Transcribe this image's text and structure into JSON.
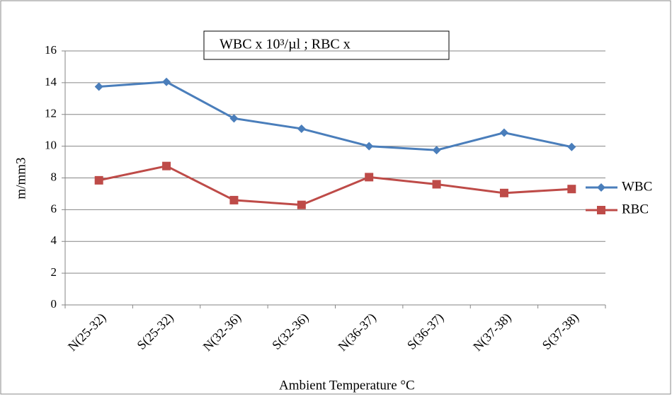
{
  "chart_data": {
    "type": "line",
    "title": "WBC x 10³/µl ; RBC x",
    "x_label": "Ambient Temperature °C",
    "y_label": "m/mm3",
    "categories": [
      "N(25-32)",
      "S(25-32)",
      "N(32-36)",
      "S(32-36)",
      "N(36-37)",
      "S(36-37)",
      "N(37-38)",
      "S(37-38)"
    ],
    "series": [
      {
        "name": "WBC",
        "color": "#4a7ebb",
        "marker": "diamond",
        "values": [
          13.75,
          14.05,
          11.75,
          11.1,
          10.0,
          9.75,
          10.85,
          9.95
        ]
      },
      {
        "name": "RBC",
        "color": "#be4b48",
        "marker": "square",
        "values": [
          7.85,
          8.75,
          6.6,
          6.3,
          8.05,
          7.6,
          7.05,
          7.3
        ]
      }
    ],
    "ylim": [
      0,
      16
    ],
    "yticks": [
      0,
      2,
      4,
      6,
      8,
      10,
      12,
      14,
      16
    ],
    "grid": true,
    "legend": "right"
  }
}
